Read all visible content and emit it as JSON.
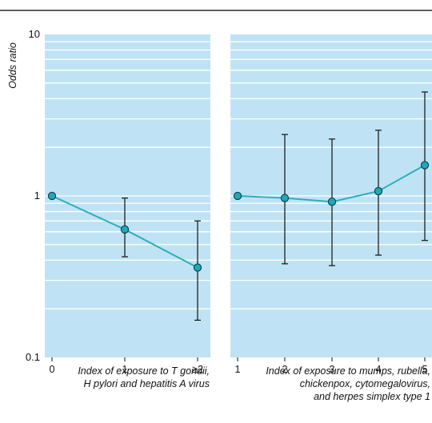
{
  "chart_data": {
    "type": "line",
    "ylabel": "Odds ratio",
    "yscale": "log",
    "ylim": [
      0.1,
      10
    ],
    "ytick_labels": [
      "10",
      "1",
      "0.1"
    ],
    "yticks": [
      10,
      1,
      0.1
    ],
    "grid": true,
    "colors": {
      "background": "#bfe3f4",
      "gridline": "#ffffff",
      "line": "#2ab0bd",
      "marker": "#1fa9b8",
      "errorbar": "#111111",
      "rule": "#000000"
    },
    "panels": [
      {
        "categories": [
          "0",
          "1",
          "≥2"
        ],
        "values": [
          1.0,
          0.62,
          0.36
        ],
        "ci_lower": [
          null,
          0.42,
          0.17
        ],
        "ci_upper": [
          null,
          0.97,
          0.7
        ],
        "xlabel_lines": [
          "Index of exposure to T gondii,",
          "H pylori and hepatitis A virus"
        ]
      },
      {
        "categories": [
          "1",
          "2",
          "3",
          "4",
          "5"
        ],
        "values": [
          1.0,
          0.97,
          0.92,
          1.07,
          1.55
        ],
        "ci_lower": [
          null,
          0.38,
          0.37,
          0.43,
          0.53
        ],
        "ci_upper": [
          null,
          2.4,
          2.25,
          2.55,
          4.4
        ],
        "xlabel_lines": [
          "Index of exposure to mumps, rubella,",
          "chickenpox, cytomegalovirus,",
          "and herpes simplex type 1"
        ]
      }
    ]
  }
}
